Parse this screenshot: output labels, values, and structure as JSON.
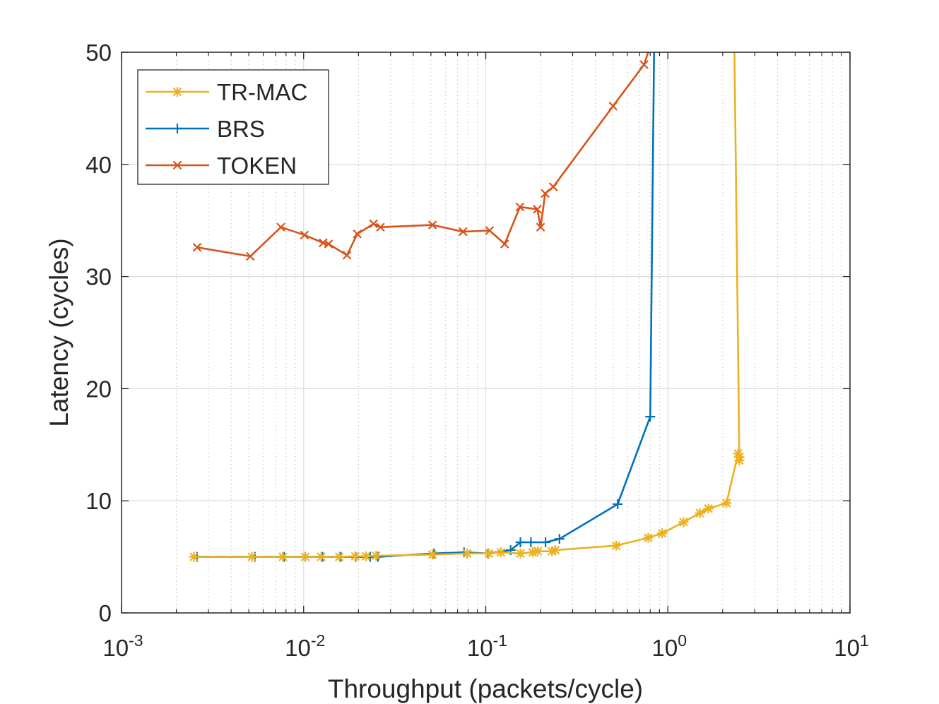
{
  "chart_data": {
    "type": "line",
    "title": "",
    "xlabel": "Throughput (packets/cycle)",
    "ylabel": "Latency (cycles)",
    "xscale": "log",
    "xlim": [
      0.001,
      10
    ],
    "ylim": [
      0,
      50
    ],
    "x_ticks": [
      {
        "base": "10",
        "exp": "-3"
      },
      {
        "base": "10",
        "exp": "-2"
      },
      {
        "base": "10",
        "exp": "-1"
      },
      {
        "base": "10",
        "exp": "0"
      },
      {
        "base": "10",
        "exp": "1"
      }
    ],
    "y_ticks": [
      "0",
      "10",
      "20",
      "30",
      "40",
      "50"
    ],
    "grid": true,
    "legend_position": "top-left",
    "series": [
      {
        "name": "TR-MAC",
        "color": "#EDB120",
        "marker": "asterisk",
        "x": [
          0.0025,
          0.0052,
          0.0077,
          0.0102,
          0.0125,
          0.0157,
          0.0192,
          0.022,
          0.025,
          0.051,
          0.079,
          0.104,
          0.121,
          0.155,
          0.181,
          0.193,
          0.231,
          0.241,
          0.52,
          0.78,
          0.93,
          1.22,
          1.5,
          1.67,
          2.1,
          2.43,
          2.47,
          2.47,
          2.32
        ],
        "y": [
          5.0,
          5.0,
          5.0,
          5.0,
          5.0,
          5.0,
          5.05,
          5.05,
          5.1,
          5.2,
          5.3,
          5.3,
          5.4,
          5.3,
          5.4,
          5.5,
          5.5,
          5.6,
          6.0,
          6.7,
          7.1,
          8.1,
          8.9,
          9.3,
          9.8,
          14.2,
          13.9,
          13.6,
          50
        ]
      },
      {
        "name": "BRS",
        "color": "#0072BD",
        "marker": "plus",
        "x": [
          0.0026,
          0.0054,
          0.0078,
          0.0102,
          0.0127,
          0.016,
          0.0193,
          0.0232,
          0.0256,
          0.052,
          0.076,
          0.103,
          0.137,
          0.155,
          0.177,
          0.213,
          0.254,
          0.53,
          0.8,
          0.84
        ],
        "y": [
          5.0,
          5.0,
          5.0,
          5.0,
          5.0,
          5.0,
          5.0,
          5.0,
          5.0,
          5.3,
          5.4,
          5.3,
          5.6,
          6.3,
          6.3,
          6.3,
          6.6,
          9.7,
          17.5,
          50
        ]
      },
      {
        "name": "TOKEN",
        "color": "#D95319",
        "marker": "x",
        "x": [
          0.0026,
          0.0051,
          0.0075,
          0.0101,
          0.0128,
          0.0137,
          0.0173,
          0.0197,
          0.0242,
          0.0264,
          0.051,
          0.075,
          0.105,
          0.127,
          0.154,
          0.192,
          0.2,
          0.212,
          0.235,
          0.5,
          0.74,
          0.78
        ],
        "y": [
          32.6,
          31.8,
          34.4,
          33.7,
          33.0,
          32.9,
          31.9,
          33.8,
          34.7,
          34.4,
          34.6,
          34.0,
          34.1,
          32.9,
          36.2,
          36.0,
          34.4,
          37.4,
          38.0,
          45.2,
          48.9,
          50
        ]
      }
    ]
  }
}
